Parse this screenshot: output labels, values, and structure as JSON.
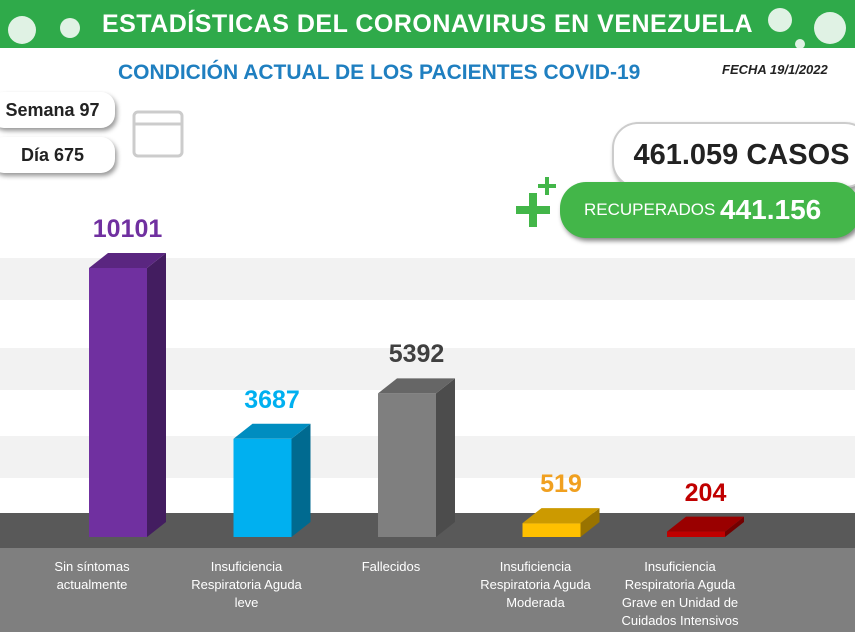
{
  "header": {
    "title": "ESTADÍSTICAS DEL CORONAVIRUS EN VENEZUELA",
    "subtitle": "CONDICIÓN ACTUAL DE LOS PACIENTES COVID-19",
    "date": "FECHA 19/1/2022"
  },
  "info": {
    "week": "Semana 97",
    "day": "Día 675",
    "cases": "461.059 CASOS",
    "recovered_label": "RECUPERADOS",
    "recovered_value": "441.156"
  },
  "chart_data": {
    "type": "bar3d",
    "categories": [
      "Sin síntomas actualmente",
      "Insuficiencia Respiratoria Aguda leve",
      "Fallecidos",
      "Insuficiencia Respiratoria Aguda Moderada",
      "Insuficiencia Respiratoria Aguda Grave en Unidad de Cuidados Intensivos"
    ],
    "values": [
      10101,
      3687,
      5392,
      519,
      204
    ],
    "colors": [
      "#7030a0",
      "#00b0f0",
      "#7f7f7f",
      "#ffc000",
      "#c00000"
    ],
    "label_colors": [
      "#7030a0",
      "#00b0f0",
      "#404040",
      "#f0a020",
      "#c00000"
    ]
  }
}
